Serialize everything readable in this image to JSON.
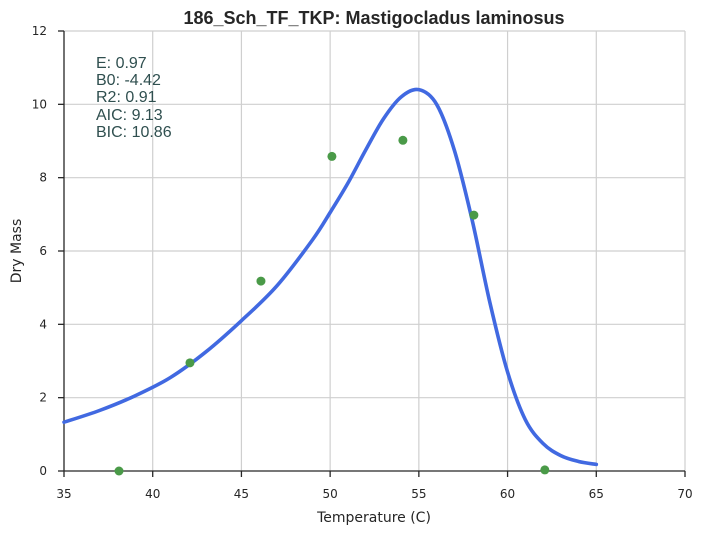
{
  "chart_data": {
    "type": "scatter",
    "title": "186_Sch_TF_TKP: Mastigocladus laminosus",
    "xlabel": "Temperature (C)",
    "ylabel": "Dry Mass",
    "xlim": [
      35,
      70
    ],
    "ylim": [
      0,
      12
    ],
    "x_ticks": [
      "35",
      "40",
      "45",
      "50",
      "55",
      "60",
      "65",
      "70"
    ],
    "y_ticks": [
      "0",
      "2",
      "4",
      "6",
      "8",
      "10",
      "12"
    ],
    "grid": true,
    "points": {
      "color": "#4a9a48",
      "x": [
        38.1,
        42.1,
        46.1,
        50.1,
        54.1,
        58.1,
        62.1
      ],
      "y": [
        0.0,
        2.95,
        5.18,
        8.58,
        9.02,
        6.98,
        0.03
      ]
    },
    "fit": {
      "color": "#4169e1",
      "x": [
        35,
        37,
        39,
        41,
        43,
        45,
        47,
        49,
        50,
        51,
        52,
        53,
        54,
        55,
        56,
        57,
        58,
        59,
        60,
        61,
        62,
        63,
        64,
        65
      ],
      "y": [
        1.33,
        1.65,
        2.05,
        2.55,
        3.25,
        4.1,
        5.05,
        6.3,
        7.05,
        7.85,
        8.75,
        9.6,
        10.2,
        10.4,
        10.0,
        8.75,
        6.85,
        4.6,
        2.7,
        1.4,
        0.75,
        0.42,
        0.26,
        0.18
      ]
    },
    "annotation": [
      "E:  0.97",
      "B0:  -4.42",
      "R2:  0.91",
      "AIC: 9.13",
      "BIC: 10.86"
    ]
  }
}
